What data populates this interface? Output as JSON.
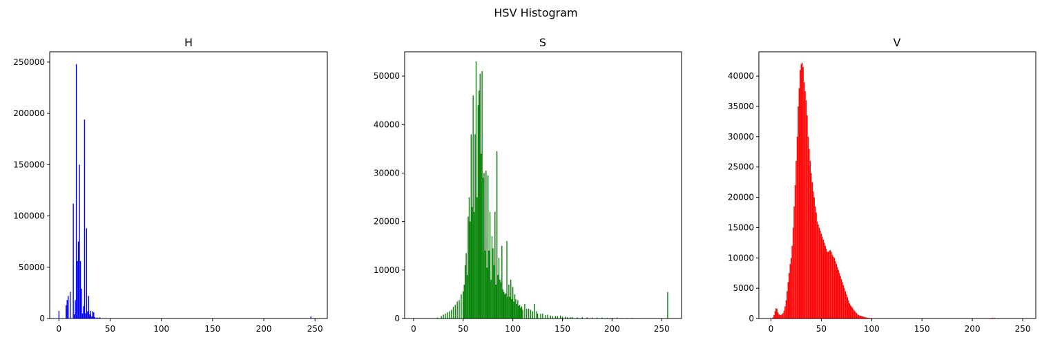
{
  "figure": {
    "title": "HSV Histogram"
  },
  "chart_data": [
    {
      "type": "bar",
      "title": "H",
      "color": "#0000ff",
      "xlim": [
        -9,
        262
      ],
      "ylim": [
        0,
        260000
      ],
      "x_ticks": [
        0,
        50,
        100,
        150,
        200,
        250
      ],
      "x_tick_labels": [
        "0",
        "50",
        "100",
        "150",
        "200",
        "250"
      ],
      "y_ticks": [
        0,
        50000,
        100000,
        150000,
        200000,
        250000
      ],
      "y_tick_labels": [
        "0",
        "50000",
        "100000",
        "150000",
        "200000",
        "250000"
      ],
      "x": [
        0,
        7,
        8,
        9,
        11,
        14,
        15,
        16,
        17,
        18,
        19,
        20,
        21,
        22,
        23,
        24,
        25,
        26,
        27,
        28,
        29,
        30,
        31,
        32,
        33,
        34,
        35,
        37,
        38,
        40,
        50,
        246
      ],
      "values": [
        7500,
        13000,
        18000,
        22000,
        26000,
        112000,
        4000,
        18000,
        248000,
        56000,
        75000,
        150000,
        56000,
        29000,
        5000,
        12000,
        194000,
        5000,
        88000,
        7000,
        22000,
        4000,
        7500,
        2000,
        7000,
        6000,
        1500,
        1000,
        600,
        1200,
        400,
        2000
      ]
    },
    {
      "type": "bar",
      "title": "S",
      "color": "#008000",
      "xlim": [
        -9,
        270
      ],
      "ylim": [
        0,
        55000
      ],
      "x_ticks": [
        0,
        50,
        100,
        150,
        200,
        250
      ],
      "x_tick_labels": [
        "0",
        "50",
        "100",
        "150",
        "200",
        "250"
      ],
      "y_ticks": [
        0,
        10000,
        20000,
        30000,
        40000,
        50000
      ],
      "y_tick_labels": [
        "0",
        "10000",
        "20000",
        "30000",
        "40000",
        "50000"
      ],
      "x": [
        24,
        28,
        30,
        32,
        34,
        36,
        38,
        40,
        42,
        44,
        46,
        48,
        50,
        51,
        52,
        53,
        54,
        55,
        56,
        57,
        58,
        59,
        60,
        61,
        62,
        63,
        64,
        65,
        66,
        67,
        68,
        69,
        70,
        71,
        72,
        73,
        74,
        75,
        76,
        77,
        78,
        79,
        80,
        81,
        82,
        83,
        84,
        85,
        86,
        87,
        88,
        89,
        90,
        91,
        92,
        93,
        94,
        95,
        96,
        97,
        98,
        99,
        100,
        101,
        102,
        103,
        104,
        105,
        106,
        107,
        108,
        109,
        110,
        112,
        114,
        116,
        118,
        120,
        122,
        124,
        125,
        128,
        130,
        133,
        135,
        138,
        140,
        143,
        145,
        148,
        150,
        153,
        155,
        158,
        160,
        165,
        170,
        175,
        180,
        185,
        190,
        195,
        200,
        205,
        210,
        215,
        220,
        225,
        230,
        256
      ],
      "values": [
        200,
        500,
        800,
        1000,
        1300,
        1500,
        1800,
        2400,
        2800,
        3500,
        3800,
        5000,
        5600,
        7000,
        11000,
        13500,
        9000,
        21000,
        25000,
        20000,
        38000,
        23000,
        46000,
        22000,
        38000,
        53000,
        25000,
        44000,
        47000,
        50500,
        34000,
        51000,
        29000,
        30000,
        14000,
        30500,
        10500,
        29500,
        14000,
        22000,
        8000,
        17000,
        14500,
        11000,
        22000,
        7000,
        34500,
        9000,
        12500,
        8000,
        7500,
        15000,
        6000,
        5500,
        5000,
        5200,
        16000,
        4500,
        7000,
        4500,
        8000,
        4000,
        6500,
        3500,
        5000,
        4000,
        3000,
        3800,
        2600,
        2800,
        2200,
        2500,
        1800,
        3000,
        2000,
        2000,
        1800,
        1500,
        3000,
        1500,
        1000,
        1000,
        1000,
        700,
        800,
        600,
        500,
        500,
        500,
        600,
        400,
        400,
        300,
        300,
        300,
        250,
        300,
        250,
        200,
        200,
        200,
        150,
        150,
        200,
        100,
        100,
        120,
        100,
        80,
        5500
      ]
    },
    {
      "type": "bar",
      "title": "V",
      "color": "#ff0000",
      "xlim": [
        -12,
        263
      ],
      "ylim": [
        0,
        44000
      ],
      "x_ticks": [
        0,
        50,
        100,
        150,
        200,
        250
      ],
      "x_tick_labels": [
        "0",
        "50",
        "100",
        "150",
        "200",
        "250"
      ],
      "y_ticks": [
        0,
        5000,
        10000,
        15000,
        20000,
        25000,
        30000,
        35000,
        40000
      ],
      "y_tick_labels": [
        "0",
        "5000",
        "10000",
        "15000",
        "20000",
        "25000",
        "30000",
        "35000",
        "40000"
      ],
      "x": [
        2,
        3,
        4,
        5,
        6,
        7,
        8,
        9,
        10,
        11,
        12,
        13,
        14,
        15,
        16,
        17,
        18,
        19,
        20,
        21,
        22,
        23,
        24,
        25,
        26,
        27,
        28,
        29,
        30,
        31,
        32,
        33,
        34,
        35,
        36,
        37,
        38,
        39,
        40,
        41,
        42,
        43,
        44,
        45,
        46,
        47,
        48,
        49,
        50,
        51,
        52,
        53,
        54,
        55,
        56,
        57,
        58,
        59,
        60,
        61,
        62,
        63,
        64,
        65,
        66,
        67,
        68,
        69,
        70,
        71,
        72,
        73,
        74,
        75,
        76,
        77,
        78,
        79,
        80,
        81,
        82,
        83,
        84,
        85,
        86,
        87,
        88,
        89,
        90,
        91,
        92,
        93,
        94,
        95,
        96,
        97,
        98,
        99,
        100,
        101,
        102,
        103,
        104,
        105,
        106,
        107,
        108,
        109,
        110,
        112,
        115,
        120,
        130,
        140,
        150,
        160,
        170,
        180,
        190,
        200,
        210,
        218,
        220,
        222,
        225,
        230,
        240,
        250
      ],
      "values": [
        200,
        600,
        1200,
        1700,
        1600,
        1000,
        700,
        600,
        600,
        700,
        900,
        1300,
        2000,
        3000,
        4500,
        6000,
        7500,
        9000,
        10000,
        12000,
        15000,
        18500,
        22000,
        26000,
        30000,
        35000,
        38000,
        41000,
        42000,
        42200,
        41500,
        39000,
        37500,
        36000,
        33500,
        30000,
        28000,
        26000,
        24000,
        22500,
        21000,
        20000,
        18500,
        17500,
        16000,
        15500,
        15000,
        14500,
        14000,
        13500,
        13000,
        12500,
        12000,
        11500,
        11000,
        11000,
        11200,
        11300,
        11000,
        10500,
        10200,
        10000,
        9500,
        9000,
        8500,
        8000,
        7500,
        7000,
        6500,
        6000,
        5500,
        5000,
        4500,
        4000,
        3500,
        3000,
        2500,
        2200,
        2000,
        1800,
        1500,
        1300,
        1100,
        900,
        700,
        600,
        500,
        450,
        400,
        350,
        300,
        250,
        200,
        150,
        120,
        100,
        90,
        80,
        70,
        60,
        50,
        45,
        40,
        35,
        30,
        25,
        20,
        15,
        10,
        8,
        5,
        5,
        3,
        3,
        2,
        2,
        2,
        2,
        2,
        2,
        2,
        100,
        150,
        120,
        60,
        5,
        2,
        0
      ]
    }
  ]
}
